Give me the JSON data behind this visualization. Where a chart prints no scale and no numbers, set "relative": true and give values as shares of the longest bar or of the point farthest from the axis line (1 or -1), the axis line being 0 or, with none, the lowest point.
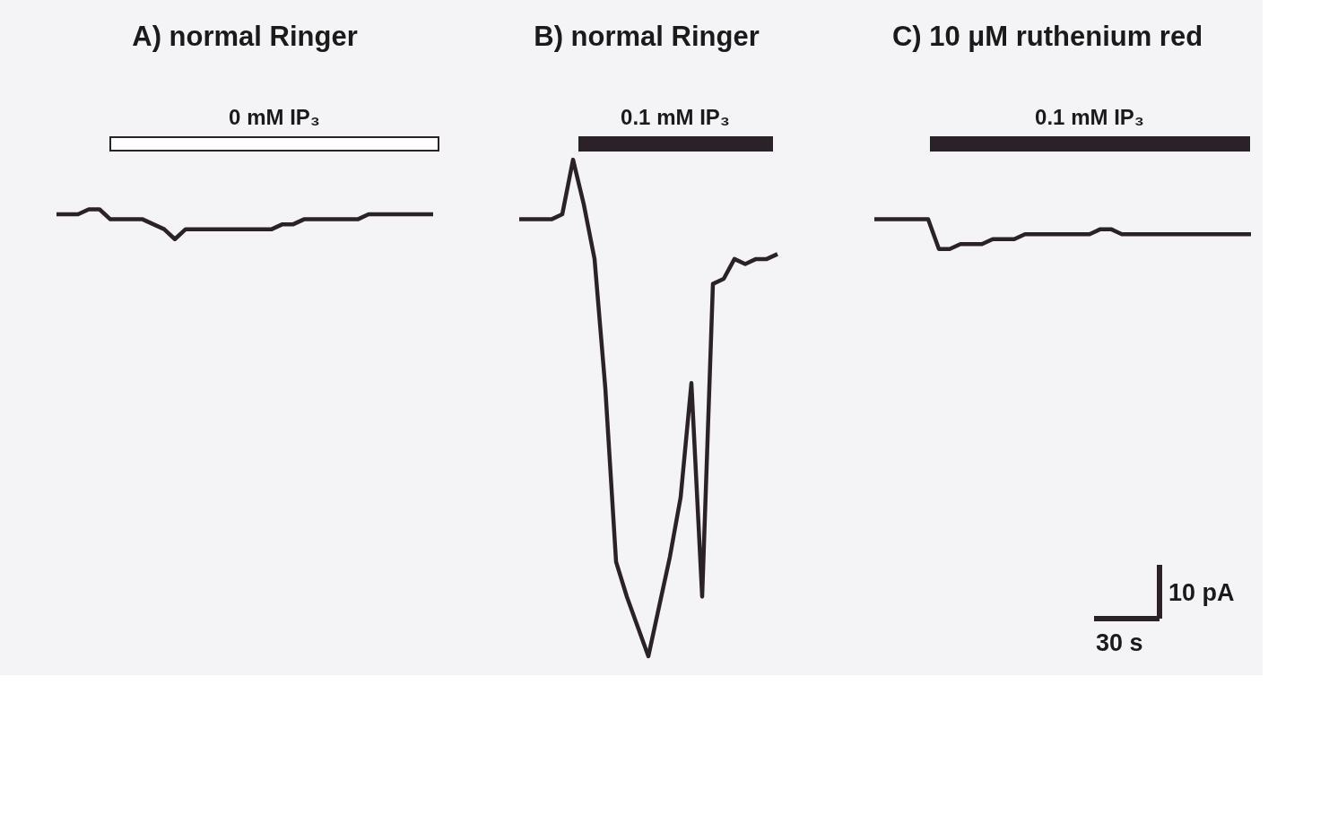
{
  "chart_data": {
    "type": "line",
    "relative": true,
    "tick_labels": false,
    "line_style": "solid",
    "categories": [
      null,
      null,
      null,
      null,
      null,
      null,
      null,
      null,
      null,
      null,
      null,
      null,
      null,
      null,
      null,
      null,
      null,
      null,
      null,
      null,
      null,
      null,
      null,
      null,
      null,
      null,
      null,
      null,
      null,
      null,
      null,
      null,
      null,
      null,
      null,
      null,
      null,
      null,
      null,
      null,
      null,
      null,
      null,
      null,
      null,
      null,
      null,
      null,
      null,
      null,
      null,
      null,
      null,
      null,
      null,
      null,
      null,
      null,
      null,
      null,
      null,
      null,
      null,
      null,
      null,
      null,
      null,
      null,
      null,
      null,
      null,
      null,
      null,
      null,
      null,
      null,
      null,
      null,
      null,
      null,
      null,
      null,
      null,
      null,
      null,
      null,
      null,
      null,
      null,
      null,
      null,
      null,
      null,
      null,
      null,
      null,
      null,
      null,
      null,
      null,
      null,
      null,
      null,
      null,
      null,
      null,
      null,
      null,
      null,
      null,
      null,
      null
    ],
    "series": [
      {
        "color": "#2a2228",
        "values": [
          0.89,
          0.89,
          0.89,
          0.9,
          0.9,
          0.88,
          0.88,
          0.88,
          0.88,
          0.87,
          0.86,
          0.84,
          0.86,
          0.86,
          0.86,
          0.86,
          0.86,
          0.86,
          0.86,
          0.86,
          0.86,
          0.87,
          0.87,
          0.88,
          0.88,
          0.88,
          0.88,
          0.88,
          0.88,
          0.89,
          0.89,
          0.89,
          0.89,
          0.89,
          0.89,
          0.89,
          null,
          null,
          null,
          null,
          null,
          null,
          null,
          null,
          null,
          null,
          null,
          null,
          null,
          null,
          null,
          null,
          null,
          null,
          null,
          null,
          null,
          null,
          null,
          null,
          null,
          null,
          null,
          null,
          null,
          null,
          null,
          null,
          null,
          null,
          null,
          null,
          null,
          null,
          null,
          null,
          null,
          null,
          null,
          null,
          null,
          null,
          null,
          null,
          null,
          null,
          null,
          null,
          null,
          null,
          null,
          null,
          null,
          null,
          null,
          null,
          null,
          null,
          null,
          null,
          null,
          null,
          null,
          null,
          null,
          null,
          null,
          null,
          null,
          null,
          null,
          null
        ]
      },
      {
        "color": "#2a2228",
        "values": [
          null,
          null,
          null,
          null,
          null,
          null,
          null,
          null,
          null,
          null,
          null,
          null,
          null,
          null,
          null,
          null,
          null,
          null,
          null,
          null,
          null,
          null,
          null,
          null,
          null,
          null,
          null,
          null,
          null,
          null,
          null,
          null,
          null,
          null,
          null,
          null,
          null,
          null,
          null,
          null,
          null,
          null,
          null,
          0.88,
          0.88,
          0.88,
          0.88,
          0.89,
          1.0,
          0.91,
          0.8,
          0.54,
          0.19,
          0.12,
          0.06,
          0.0,
          0.1,
          0.2,
          0.32,
          0.55,
          0.12,
          0.75,
          0.76,
          0.8,
          0.79,
          0.8,
          0.8,
          0.81,
          null,
          null,
          null,
          null,
          null,
          null,
          null,
          null,
          null,
          null,
          null,
          null,
          null,
          null,
          null,
          null,
          null,
          null,
          null,
          null,
          null,
          null,
          null,
          null,
          null,
          null,
          null,
          null,
          null,
          null,
          null,
          null,
          null,
          null,
          null,
          null,
          null,
          null,
          null,
          null,
          null,
          null,
          null,
          null
        ]
      },
      {
        "color": "#2a2228",
        "values": [
          null,
          null,
          null,
          null,
          null,
          null,
          null,
          null,
          null,
          null,
          null,
          null,
          null,
          null,
          null,
          null,
          null,
          null,
          null,
          null,
          null,
          null,
          null,
          null,
          null,
          null,
          null,
          null,
          null,
          null,
          null,
          null,
          null,
          null,
          null,
          null,
          null,
          null,
          null,
          null,
          null,
          null,
          null,
          null,
          null,
          null,
          null,
          null,
          null,
          null,
          null,
          null,
          null,
          null,
          null,
          null,
          null,
          null,
          null,
          null,
          null,
          null,
          null,
          null,
          null,
          null,
          null,
          null,
          null,
          null,
          null,
          null,
          null,
          null,
          null,
          null,
          0.88,
          0.88,
          0.88,
          0.88,
          0.88,
          0.88,
          0.82,
          0.82,
          0.83,
          0.83,
          0.83,
          0.84,
          0.84,
          0.84,
          0.85,
          0.85,
          0.85,
          0.85,
          0.85,
          0.85,
          0.85,
          0.86,
          0.86,
          0.85,
          0.85,
          0.85,
          0.85,
          0.85,
          0.85,
          0.85,
          0.85,
          0.85,
          0.85,
          0.85,
          0.85,
          0.85
        ]
      }
    ],
    "annotations": [
      "A) normal Ringer",
      "B) normal Ringer",
      "C) 10 μM ruthenium red",
      "0 mM IP₃",
      "0.1 mM IP₃",
      "0.1 mM IP₃",
      "10 pA",
      "30 s"
    ]
  }
}
